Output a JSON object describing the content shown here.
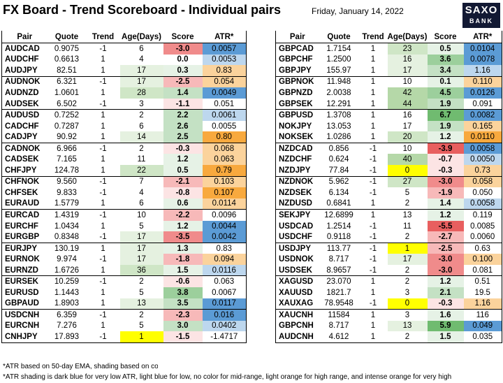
{
  "header": {
    "title": "FX Board - Trend Scoreboard - Individual pairs",
    "date": "Friday, January 14, 2022",
    "logo_line1": "SAXO",
    "logo_line2": "BANK"
  },
  "columns": [
    "Pair",
    "Quote",
    "Trend",
    "Age(Days)",
    "Score",
    "ATR*"
  ],
  "colors": {
    "score_neg_light": "#fce4e4",
    "score_neg_mid": "#f7b9b9",
    "score_neg_strong": "#f08b8b",
    "score_neg_max": "#e85f5f",
    "score_pos_light": "#e6f2e6",
    "score_pos_mid": "#c4e1c4",
    "score_pos_strong": "#9ccf9c",
    "score_pos_max": "#70bb70",
    "age_light": "#e5f1e0",
    "age_mid": "#cfe6c6",
    "age_strong": "#b5d8a8",
    "age_zero": "#ffff00",
    "atr_dark_blue": "#5b9bd5",
    "atr_light_blue": "#bdd7ee",
    "atr_light_orange": "#fbd39c",
    "atr_orange": "#f8a93e"
  },
  "left_table": [
    {
      "pair": "AUDCAD",
      "quote": "0.9075",
      "trend": "-1",
      "age": "6",
      "score": "-3.0",
      "atr": "0.0057",
      "age_color": "",
      "score_color": "score_neg_strong",
      "atr_color": "atr_dark_blue"
    },
    {
      "pair": "AUDCHF",
      "quote": "0.6613",
      "trend": "1",
      "age": "4",
      "score": "0.0",
      "atr": "0.0053",
      "age_color": "",
      "score_color": "",
      "atr_color": "atr_light_blue"
    },
    {
      "pair": "AUDJPY",
      "quote": "82.51",
      "trend": "1",
      "age": "17",
      "score": "0.3",
      "atr": "0.83",
      "age_color": "age_light",
      "score_color": "score_pos_light",
      "atr_color": "atr_light_orange"
    },
    {
      "pair": "AUDNOK",
      "quote": "6.321",
      "trend": "-1",
      "age": "17",
      "score": "-2.5",
      "atr": "0.054",
      "age_color": "age_light",
      "score_color": "score_neg_mid",
      "atr_color": "atr_light_orange"
    },
    {
      "pair": "AUDNZD",
      "quote": "1.0601",
      "trend": "1",
      "age": "28",
      "score": "1.4",
      "atr": "0.0049",
      "age_color": "age_mid",
      "score_color": "score_pos_mid",
      "atr_color": "atr_dark_blue"
    },
    {
      "pair": "AUDSEK",
      "quote": "6.502",
      "trend": "-1",
      "age": "3",
      "score": "-1.1",
      "atr": "0.051",
      "age_color": "",
      "score_color": "score_neg_light",
      "atr_color": ""
    },
    {
      "pair": "AUDUSD",
      "quote": "0.7252",
      "trend": "1",
      "age": "2",
      "score": "2.2",
      "atr": "0.0061",
      "age_color": "",
      "score_color": "score_pos_mid",
      "atr_color": "atr_light_blue"
    },
    {
      "pair": "CADCHF",
      "quote": "0.7287",
      "trend": "1",
      "age": "6",
      "score": "2.6",
      "atr": "0.0055",
      "age_color": "",
      "score_color": "score_pos_mid",
      "atr_color": ""
    },
    {
      "pair": "CADJPY",
      "quote": "90.92",
      "trend": "1",
      "age": "14",
      "score": "2.5",
      "atr": "0.80",
      "age_color": "age_light",
      "score_color": "score_pos_mid",
      "atr_color": "atr_orange"
    },
    {
      "pair": "CADNOK",
      "quote": "6.966",
      "trend": "-1",
      "age": "2",
      "score": "-0.3",
      "atr": "0.068",
      "age_color": "",
      "score_color": "score_neg_light",
      "atr_color": "atr_light_orange"
    },
    {
      "pair": "CADSEK",
      "quote": "7.165",
      "trend": "1",
      "age": "11",
      "score": "1.2",
      "atr": "0.063",
      "age_color": "",
      "score_color": "score_pos_light",
      "atr_color": "atr_light_orange"
    },
    {
      "pair": "CHFJPY",
      "quote": "124.78",
      "trend": "1",
      "age": "22",
      "score": "0.5",
      "atr": "0.79",
      "age_color": "age_mid",
      "score_color": "score_pos_light",
      "atr_color": "atr_orange"
    },
    {
      "pair": "CHFNOK",
      "quote": "9.560",
      "trend": "-1",
      "age": "7",
      "score": "-2.1",
      "atr": "0.103",
      "age_color": "",
      "score_color": "score_neg_mid",
      "atr_color": "atr_light_orange"
    },
    {
      "pair": "CHFSEK",
      "quote": "9.833",
      "trend": "-1",
      "age": "4",
      "score": "-0.8",
      "atr": "0.107",
      "age_color": "",
      "score_color": "score_neg_light",
      "atr_color": "atr_orange"
    },
    {
      "pair": "EURAUD",
      "quote": "1.5779",
      "trend": "1",
      "age": "6",
      "score": "0.6",
      "atr": "0.0114",
      "age_color": "",
      "score_color": "score_pos_light",
      "atr_color": "atr_light_orange"
    },
    {
      "pair": "EURCAD",
      "quote": "1.4319",
      "trend": "-1",
      "age": "10",
      "score": "-2.2",
      "atr": "0.0096",
      "age_color": "",
      "score_color": "score_neg_mid",
      "atr_color": ""
    },
    {
      "pair": "EURCHF",
      "quote": "1.0434",
      "trend": "1",
      "age": "5",
      "score": "1.2",
      "atr": "0.0044",
      "age_color": "",
      "score_color": "score_pos_light",
      "atr_color": "atr_dark_blue"
    },
    {
      "pair": "EURGBP",
      "quote": "0.8348",
      "trend": "-1",
      "age": "17",
      "score": "-3.5",
      "atr": "0.0042",
      "age_color": "age_light",
      "score_color": "score_neg_strong",
      "atr_color": "atr_dark_blue"
    },
    {
      "pair": "EURJPY",
      "quote": "130.19",
      "trend": "1",
      "age": "17",
      "score": "1.3",
      "atr": "0.83",
      "age_color": "age_light",
      "score_color": "score_pos_light",
      "atr_color": ""
    },
    {
      "pair": "EURNOK",
      "quote": "9.974",
      "trend": "-1",
      "age": "17",
      "score": "-1.8",
      "atr": "0.094",
      "age_color": "age_light",
      "score_color": "score_neg_mid",
      "atr_color": "atr_light_orange"
    },
    {
      "pair": "EURNZD",
      "quote": "1.6726",
      "trend": "1",
      "age": "36",
      "score": "1.5",
      "atr": "0.0116",
      "age_color": "age_mid",
      "score_color": "score_pos_light",
      "atr_color": "atr_light_blue"
    },
    {
      "pair": "EURSEK",
      "quote": "10.259",
      "trend": "-1",
      "age": "2",
      "score": "-0.6",
      "atr": "0.063",
      "age_color": "",
      "score_color": "score_neg_light",
      "atr_color": ""
    },
    {
      "pair": "EURUSD",
      "quote": "1.1443",
      "trend": "1",
      "age": "5",
      "score": "3.8",
      "atr": "0.0067",
      "age_color": "",
      "score_color": "score_pos_strong",
      "atr_color": ""
    },
    {
      "pair": "GBPAUD",
      "quote": "1.8903",
      "trend": "1",
      "age": "13",
      "score": "3.5",
      "atr": "0.0117",
      "age_color": "age_light",
      "score_color": "score_pos_mid",
      "atr_color": "atr_dark_blue"
    },
    {
      "pair": "USDCNH",
      "quote": "6.359",
      "trend": "-1",
      "age": "2",
      "score": "-2.3",
      "atr": "0.016",
      "age_color": "",
      "score_color": "score_neg_mid",
      "atr_color": "atr_dark_blue"
    },
    {
      "pair": "EURCNH",
      "quote": "7.276",
      "trend": "1",
      "age": "5",
      "score": "3.0",
      "atr": "0.0402",
      "age_color": "",
      "score_color": "score_pos_mid",
      "atr_color": "atr_light_blue"
    },
    {
      "pair": "CNHJPY",
      "quote": "17.893",
      "trend": "-1",
      "age": "1",
      "score": "-1.5",
      "atr": "-1.4717",
      "age_color": "age_zero",
      "score_color": "score_neg_light",
      "atr_color": ""
    }
  ],
  "right_table": [
    {
      "pair": "GBPCAD",
      "quote": "1.7154",
      "trend": "1",
      "age": "23",
      "score": "0.5",
      "atr": "0.0104",
      "age_color": "age_mid",
      "score_color": "score_pos_light",
      "atr_color": "atr_dark_blue"
    },
    {
      "pair": "GBPCHF",
      "quote": "1.2500",
      "trend": "1",
      "age": "16",
      "score": "3.6",
      "atr": "0.0078",
      "age_color": "age_light",
      "score_color": "score_pos_strong",
      "atr_color": "atr_dark_blue"
    },
    {
      "pair": "GBPJPY",
      "quote": "155.97",
      "trend": "1",
      "age": "17",
      "score": "3.4",
      "atr": "1.16",
      "age_color": "age_light",
      "score_color": "score_pos_mid",
      "atr_color": "atr_light_blue"
    },
    {
      "pair": "GBPNOK",
      "quote": "11.948",
      "trend": "1",
      "age": "10",
      "score": "0.1",
      "atr": "0.110",
      "age_color": "",
      "score_color": "score_pos_light",
      "atr_color": "atr_light_orange"
    },
    {
      "pair": "GBPNZD",
      "quote": "2.0038",
      "trend": "1",
      "age": "42",
      "score": "4.5",
      "atr": "0.0126",
      "age_color": "age_strong",
      "score_color": "score_pos_strong",
      "atr_color": "atr_dark_blue"
    },
    {
      "pair": "GBPSEK",
      "quote": "12.291",
      "trend": "1",
      "age": "44",
      "score": "1.9",
      "atr": "0.091",
      "age_color": "age_strong",
      "score_color": "score_pos_mid",
      "atr_color": ""
    },
    {
      "pair": "GBPUSD",
      "quote": "1.3708",
      "trend": "1",
      "age": "16",
      "score": "6.7",
      "atr": "0.0082",
      "age_color": "",
      "score_color": "score_pos_max",
      "atr_color": "atr_dark_blue"
    },
    {
      "pair": "NOKJPY",
      "quote": "13.053",
      "trend": "1",
      "age": "17",
      "score": "1.9",
      "atr": "0.165",
      "age_color": "",
      "score_color": "score_pos_mid",
      "atr_color": "atr_light_orange"
    },
    {
      "pair": "NOKSEK",
      "quote": "1.0286",
      "trend": "1",
      "age": "20",
      "score": "1.2",
      "atr": "0.0110",
      "age_color": "age_mid",
      "score_color": "score_pos_light",
      "atr_color": "atr_orange"
    },
    {
      "pair": "NZDCAD",
      "quote": "0.856",
      "trend": "-1",
      "age": "10",
      "score": "-3.9",
      "atr": "0.0058",
      "age_color": "",
      "score_color": "score_neg_max",
      "atr_color": "atr_dark_blue"
    },
    {
      "pair": "NZDCHF",
      "quote": "0.624",
      "trend": "-1",
      "age": "40",
      "score": "-0.7",
      "atr": "0.0050",
      "age_color": "age_strong",
      "score_color": "score_neg_light",
      "atr_color": "atr_light_blue"
    },
    {
      "pair": "NZDJPY",
      "quote": "77.84",
      "trend": "-1",
      "age": "0",
      "score": "-0.3",
      "atr": "0.73",
      "age_color": "age_zero",
      "score_color": "score_neg_light",
      "atr_color": "atr_light_orange"
    },
    {
      "pair": "NZDNOK",
      "quote": "5.962",
      "trend": "-1",
      "age": "27",
      "score": "-3.0",
      "atr": "0.058",
      "age_color": "age_mid",
      "score_color": "score_neg_strong",
      "atr_color": "atr_light_orange"
    },
    {
      "pair": "NZDSEK",
      "quote": "6.134",
      "trend": "-1",
      "age": "5",
      "score": "-1.9",
      "atr": "0.050",
      "age_color": "",
      "score_color": "score_neg_mid",
      "atr_color": ""
    },
    {
      "pair": "NZDUSD",
      "quote": "0.6841",
      "trend": "1",
      "age": "2",
      "score": "1.4",
      "atr": "0.0058",
      "age_color": "",
      "score_color": "score_pos_light",
      "atr_color": "atr_light_blue"
    },
    {
      "pair": "SEKJPY",
      "quote": "12.6899",
      "trend": "1",
      "age": "13",
      "score": "1.2",
      "atr": "0.119",
      "age_color": "",
      "score_color": "score_pos_light",
      "atr_color": ""
    },
    {
      "pair": "USDCAD",
      "quote": "1.2514",
      "trend": "-1",
      "age": "11",
      "score": "-5.5",
      "atr": "0.0085",
      "age_color": "",
      "score_color": "score_neg_max",
      "atr_color": ""
    },
    {
      "pair": "USDCHF",
      "quote": "0.9118",
      "trend": "-1",
      "age": "2",
      "score": "-2.7",
      "atr": "0.0060",
      "age_color": "",
      "score_color": "score_neg_mid",
      "atr_color": ""
    },
    {
      "pair": "USDJPY",
      "quote": "113.77",
      "trend": "-1",
      "age": "1",
      "score": "-2.5",
      "atr": "0.63",
      "age_color": "age_zero",
      "score_color": "score_neg_mid",
      "atr_color": ""
    },
    {
      "pair": "USDNOK",
      "quote": "8.717",
      "trend": "-1",
      "age": "17",
      "score": "-3.0",
      "atr": "0.100",
      "age_color": "age_light",
      "score_color": "score_neg_strong",
      "atr_color": "atr_light_orange"
    },
    {
      "pair": "USDSEK",
      "quote": "8.9657",
      "trend": "-1",
      "age": "2",
      "score": "-3.0",
      "atr": "0.081",
      "age_color": "",
      "score_color": "score_neg_strong",
      "atr_color": ""
    },
    {
      "pair": "XAGUSD",
      "quote": "23.070",
      "trend": "1",
      "age": "2",
      "score": "1.2",
      "atr": "0.51",
      "age_color": "",
      "score_color": "score_pos_light",
      "atr_color": ""
    },
    {
      "pair": "XAUUSD",
      "quote": "1821.7",
      "trend": "1",
      "age": "3",
      "score": "2.1",
      "atr": "19.5",
      "age_color": "",
      "score_color": "score_pos_mid",
      "atr_color": ""
    },
    {
      "pair": "XAUXAG",
      "quote": "78.9548",
      "trend": "-1",
      "age": "0",
      "score": "-0.3",
      "atr": "1.16",
      "age_color": "age_zero",
      "score_color": "score_neg_light",
      "atr_color": "atr_light_orange"
    },
    {
      "pair": "XAUCNH",
      "quote": "11584",
      "trend": "1",
      "age": "3",
      "score": "1.6",
      "atr": "116",
      "age_color": "",
      "score_color": "score_pos_light",
      "atr_color": ""
    },
    {
      "pair": "GBPCNH",
      "quote": "8.717",
      "trend": "1",
      "age": "13",
      "score": "5.9",
      "atr": "0.049",
      "age_color": "age_light",
      "score_color": "score_pos_max",
      "atr_color": "atr_dark_blue"
    },
    {
      "pair": "AUDCNH",
      "quote": "4.612",
      "trend": "1",
      "age": "2",
      "score": "1.5",
      "atr": "0.035",
      "age_color": "",
      "score_color": "score_pos_light",
      "atr_color": ""
    }
  ],
  "footer": {
    "note1": "*ATR based on 50-day EMA, shading based on co",
    "note2": "*ATR shading is dark blue for very low ATR, light blue for low, no color for mid-range, light orange for high range, and intense orange for very high"
  }
}
